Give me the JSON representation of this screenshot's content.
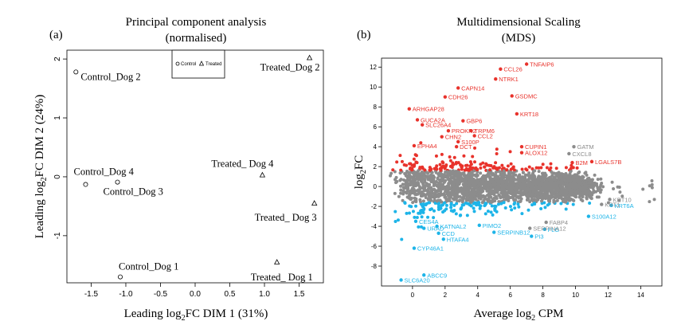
{
  "panels": {
    "a_label": "(a)",
    "b_label": "(b)"
  },
  "chart_data": [
    {
      "type": "scatter",
      "title": "Principal component analysis",
      "subtitle": "(normalised)",
      "xlabel": "Leading log2FC DIM 1 (31%)",
      "xlabel_parts": {
        "pre": "Leading log",
        "sub": "2",
        "post": "FC DIM 1 (31%)"
      },
      "ylabel": "Leading log2FC DIM 2 (24%)",
      "ylabel_parts": {
        "pre": "Leading log",
        "sub": "2",
        "post": "FC DIM 2 (24%)"
      },
      "xlim": [
        -1.85,
        1.85
      ],
      "ylim": [
        -1.8,
        2.15
      ],
      "xticks": [
        -1.5,
        -1.0,
        -0.5,
        0.0,
        0.5,
        1.0,
        1.5
      ],
      "xtick_labels": [
        "-1.5",
        "-1.0",
        "-0.5",
        "0.0",
        "0.5",
        "1.0",
        "1.5"
      ],
      "yticks": [
        -1,
        0,
        1,
        2
      ],
      "ytick_labels": [
        "-1",
        "0",
        "1",
        "2"
      ],
      "grid": false,
      "legend": {
        "position": "top-center",
        "entries": [
          {
            "name": "Control",
            "marker": "circle"
          },
          {
            "name": "Treated",
            "marker": "triangle"
          }
        ]
      },
      "series": [
        {
          "name": "Control",
          "marker": "circle",
          "points": [
            {
              "x": -1.72,
              "y": 1.78,
              "label": "Control_Dog 2"
            },
            {
              "x": -1.58,
              "y": -0.13,
              "label": "Control_Dog 4"
            },
            {
              "x": -1.12,
              "y": -0.09,
              "label": "Control_Dog 3"
            },
            {
              "x": -1.08,
              "y": -1.7,
              "label": "Control_Dog 1"
            }
          ]
        },
        {
          "name": "Treated",
          "marker": "triangle",
          "points": [
            {
              "x": 1.65,
              "y": 2.02,
              "label": "Treated_Dog 2"
            },
            {
              "x": 0.97,
              "y": 0.03,
              "label": "Treated_ Dog 4"
            },
            {
              "x": 1.72,
              "y": -0.45,
              "label": "Treated_ Dog 3"
            },
            {
              "x": 1.18,
              "y": -1.45,
              "label": "Treated_ Dog 1"
            }
          ]
        }
      ]
    },
    {
      "type": "scatter",
      "title": "Multidimensional Scaling",
      "subtitle": "(MDS)",
      "xlabel": "Average log2 CPM",
      "xlabel_parts": {
        "pre": "Average log",
        "sub": "2",
        "post": " CPM"
      },
      "ylabel": "log2FC",
      "ylabel_parts": {
        "pre": "log",
        "sub": "2",
        "post": "FC"
      },
      "xlim": [
        -1.9,
        15.3
      ],
      "ylim": [
        -10.0,
        12.9
      ],
      "xticks": [
        0,
        2,
        4,
        6,
        8,
        10,
        12,
        14
      ],
      "xtick_labels": [
        "0",
        "2",
        "4",
        "6",
        "8",
        "10",
        "12",
        "14"
      ],
      "yticks": [
        -8,
        -6,
        -4,
        -2,
        0,
        2,
        4,
        6,
        8,
        10,
        12
      ],
      "ytick_labels": [
        "-8",
        "-6",
        "-4",
        "-2",
        "0",
        "2",
        "4",
        "6",
        "8",
        "10",
        "12"
      ],
      "grid": false,
      "colors": {
        "up": "#e8322b",
        "down": "#1db4e8",
        "ns": "#8c8c8c"
      },
      "labels_up": [
        {
          "x": 7.0,
          "y": 12.3,
          "label": "TNFAIP6"
        },
        {
          "x": 5.4,
          "y": 11.8,
          "label": "CCL26"
        },
        {
          "x": 5.1,
          "y": 10.8,
          "label": "NTRK1"
        },
        {
          "x": 2.8,
          "y": 9.9,
          "label": "CAPN14"
        },
        {
          "x": 6.1,
          "y": 9.1,
          "label": "GSDMC"
        },
        {
          "x": 2.0,
          "y": 9.0,
          "label": "CDH26"
        },
        {
          "x": 6.4,
          "y": 7.3,
          "label": "KRT18"
        },
        {
          "x": -0.2,
          "y": 7.8,
          "label": "ARHGAP28"
        },
        {
          "x": 0.3,
          "y": 6.7,
          "label": "GUCA2A"
        },
        {
          "x": 0.6,
          "y": 6.2,
          "label": "SLC26A4"
        },
        {
          "x": 3.1,
          "y": 6.6,
          "label": "GBP6"
        },
        {
          "x": 2.2,
          "y": 5.6,
          "label": "PROKR2"
        },
        {
          "x": 3.6,
          "y": 5.6,
          "label": "TRPM6"
        },
        {
          "x": 1.8,
          "y": 5.0,
          "label": "CHN2"
        },
        {
          "x": 3.8,
          "y": 5.1,
          "label": "CCL2"
        },
        {
          "x": 2.8,
          "y": 4.5,
          "label": "S100P"
        },
        {
          "x": 0.1,
          "y": 4.1,
          "label": "EPHA4"
        },
        {
          "x": 2.7,
          "y": 4.0,
          "label": "DCT"
        },
        {
          "x": 6.7,
          "y": 4.0,
          "label": "CUPIN1"
        },
        {
          "x": 6.7,
          "y": 3.4,
          "label": "ALOX12"
        },
        {
          "x": 9.8,
          "y": 2.4,
          "label": "B2M"
        },
        {
          "x": 11.0,
          "y": 2.5,
          "label": "LGALS7B"
        }
      ],
      "labels_down": [
        {
          "x": 0.2,
          "y": -3.5,
          "label": "CES4A"
        },
        {
          "x": 0.7,
          "y": -4.2,
          "label": "URAD"
        },
        {
          "x": 1.5,
          "y": -4.0,
          "label": "KATNAL2"
        },
        {
          "x": 4.1,
          "y": -3.9,
          "label": "PIMO2"
        },
        {
          "x": 1.6,
          "y": -4.7,
          "label": "CCD"
        },
        {
          "x": 1.9,
          "y": -5.3,
          "label": "HTAFA4"
        },
        {
          "x": 5.0,
          "y": -4.6,
          "label": "SERPINB12"
        },
        {
          "x": 8.1,
          "y": -4.3,
          "label": "FLG"
        },
        {
          "x": 7.3,
          "y": -5.0,
          "label": "PI3"
        },
        {
          "x": 10.8,
          "y": -3.0,
          "label": "S100A12"
        },
        {
          "x": 12.2,
          "y": -1.9,
          "label": "KRT6A"
        },
        {
          "x": 0.1,
          "y": -6.2,
          "label": "CYP46A1"
        },
        {
          "x": 0.7,
          "y": -8.9,
          "label": "ABCC9"
        },
        {
          "x": -0.7,
          "y": -9.4,
          "label": "SLC6A20"
        }
      ],
      "labels_ns": [
        {
          "x": 9.9,
          "y": 4.0,
          "label": "GATM"
        },
        {
          "x": 9.6,
          "y": 3.3,
          "label": "CXCL8"
        },
        {
          "x": 12.1,
          "y": -1.3,
          "label": "KRT10"
        },
        {
          "x": 11.6,
          "y": -1.8,
          "label": "KRT1"
        },
        {
          "x": 8.2,
          "y": -3.6,
          "label": "FABP4"
        },
        {
          "x": 7.2,
          "y": -4.2,
          "label": "SERPINA12"
        }
      ]
    }
  ]
}
